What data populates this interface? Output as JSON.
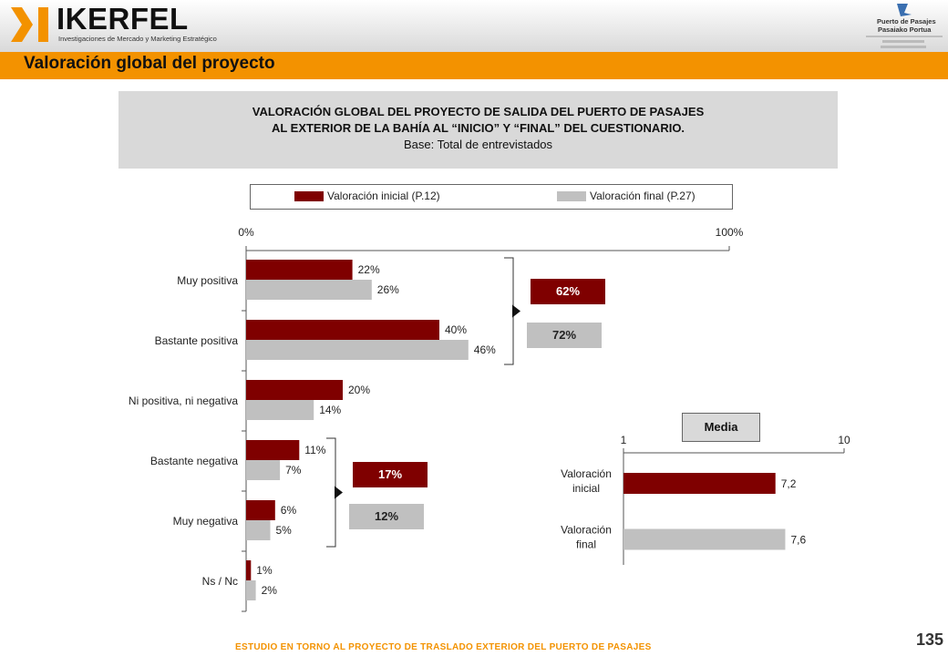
{
  "header": {
    "brand": "IKERFEL",
    "brand_subtitle": "Investigaciones de Mercado y Marketing Estratégico",
    "port_line1": "Puerto de Pasajes",
    "port_line2": "Pasaiako Portua",
    "section_title": "Valoración global del proyecto"
  },
  "headbox": {
    "line1": "VALORACIÓN GLOBAL DEL PROYECTO DE SALIDA DEL PUERTO DE PASAJES",
    "line2": "AL EXTERIOR DE LA BAHÍA AL “INICIO” Y “FINAL” DEL CUESTIONARIO.",
    "line3": "Base: Total de entrevistados"
  },
  "colors": {
    "initial": "#7f0000",
    "final": "#c0c0c0",
    "accent": "#f39200"
  },
  "chart_data": [
    {
      "type": "bar",
      "orientation": "horizontal",
      "categories": [
        "Muy positiva",
        "Bastante positiva",
        "Ni positiva, ni negativa",
        "Bastante negativa",
        "Muy negativa",
        "Ns / Nc"
      ],
      "series": [
        {
          "name": "Valoración inicial (P.12)",
          "values": [
            22,
            40,
            20,
            11,
            6,
            1
          ],
          "labels": [
            "22%",
            "40%",
            "20%",
            "11%",
            "6%",
            "1%"
          ]
        },
        {
          "name": "Valoración final (P.27)",
          "values": [
            26,
            46,
            14,
            7,
            5,
            2
          ],
          "labels": [
            "26%",
            "46%",
            "14%",
            "7%",
            "5%",
            "2%"
          ]
        }
      ],
      "axis_ticks": [
        "0%",
        "100%"
      ],
      "xlim": [
        0,
        100
      ],
      "legend_placement": "top",
      "grid": false,
      "summaries": {
        "positive": {
          "initial": "62%",
          "final": "72%"
        },
        "negative": {
          "initial": "17%",
          "final": "12%"
        }
      }
    },
    {
      "type": "bar",
      "orientation": "horizontal",
      "title": "Media",
      "categories": [
        "Valoración inicial",
        "Valoración final"
      ],
      "values": [
        7.2,
        7.6
      ],
      "labels": [
        "7,2",
        "7,6"
      ],
      "axis_ticks": [
        "1",
        "10"
      ],
      "xlim": [
        1,
        10
      ]
    }
  ],
  "footer": {
    "text": "ESTUDIO EN TORNO AL PROYECTO DE TRASLADO EXTERIOR DEL PUERTO DE PASAJES",
    "page": "135"
  }
}
